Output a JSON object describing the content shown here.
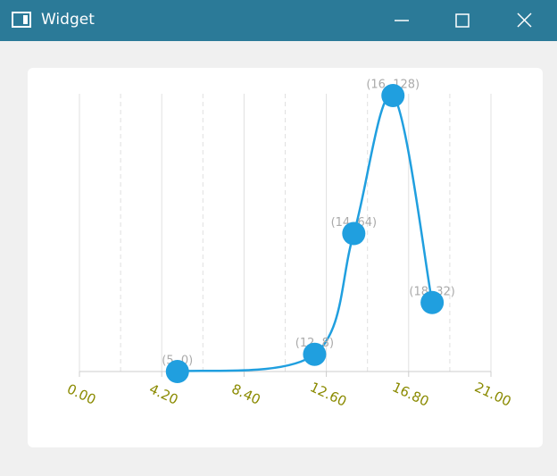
{
  "window": {
    "title": "Widget"
  },
  "chart_data": {
    "type": "spline",
    "x": [
      5,
      12,
      14,
      16,
      18
    ],
    "values": [
      0,
      8,
      64,
      128,
      32
    ],
    "value_labels": [
      "(5, 0)",
      "(12, 8)",
      "(14, 64)",
      "(16, 128)",
      "(18, 32)"
    ],
    "color": "#209fdf",
    "xlim": [
      0,
      21
    ],
    "xticks": [
      {
        "value": 0,
        "label": "0.00"
      },
      {
        "value": 4.2,
        "label": "4.20"
      },
      {
        "value": 8.4,
        "label": "8.40"
      },
      {
        "value": 12.6,
        "label": "12.60"
      },
      {
        "value": 16.8,
        "label": "16.80"
      },
      {
        "value": 21,
        "label": "21.00"
      }
    ],
    "ylim": [
      0,
      128
    ],
    "grid": true
  }
}
